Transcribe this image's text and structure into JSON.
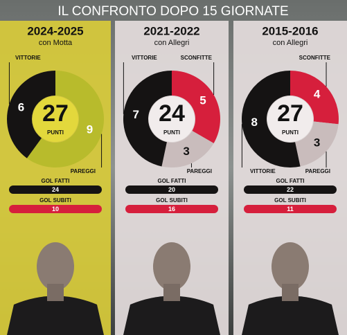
{
  "header": {
    "title": "IL CONFRONTO DOPO 15 GIORNATE"
  },
  "chart_data": [
    {
      "type": "donut",
      "title": "2024-2025",
      "subtitle": "con Motta",
      "categories": [
        "PAREGGI",
        "VITTORIE"
      ],
      "values": [
        9,
        6
      ],
      "colors": [
        "#b8bb2c",
        "#151313"
      ],
      "center_value": 27,
      "center_label": "PUNTI",
      "inner_color": "#e3d83c",
      "background": "#d8cb3a",
      "stats": [
        {
          "label": "GOL FATTI",
          "value": 24,
          "color": "#151313"
        },
        {
          "label": "GOL SUBITI",
          "value": 10,
          "color": "#d61f3c"
        }
      ]
    },
    {
      "type": "donut",
      "title": "2021-2022",
      "subtitle": "con Allegri",
      "categories": [
        "SCONFITTE",
        "PAREGGI",
        "VITTORIE"
      ],
      "values": [
        5,
        3,
        7
      ],
      "colors": [
        "#d61f3c",
        "#c9bcbc",
        "#151313"
      ],
      "center_value": 24,
      "center_label": "PUNTI",
      "inner_color": "#f1ecec",
      "background": "#e4dcdc",
      "stats": [
        {
          "label": "GOL FATTI",
          "value": 20,
          "color": "#151313"
        },
        {
          "label": "GOL SUBITI",
          "value": 16,
          "color": "#d61f3c"
        }
      ]
    },
    {
      "type": "donut",
      "title": "2015-2016",
      "subtitle": "con Allegri",
      "categories": [
        "SCONFITTE",
        "PAREGGI",
        "VITTORIE"
      ],
      "values": [
        4,
        3,
        8
      ],
      "colors": [
        "#d61f3c",
        "#c9bcbc",
        "#151313"
      ],
      "center_value": 27,
      "center_label": "PUNTI",
      "inner_color": "#f1ecec",
      "background": "#e4dcdc",
      "stats": [
        {
          "label": "GOL FATTI",
          "value": 22,
          "color": "#151313"
        },
        {
          "label": "GOL SUBITI",
          "value": 11,
          "color": "#d61f3c"
        }
      ]
    }
  ]
}
